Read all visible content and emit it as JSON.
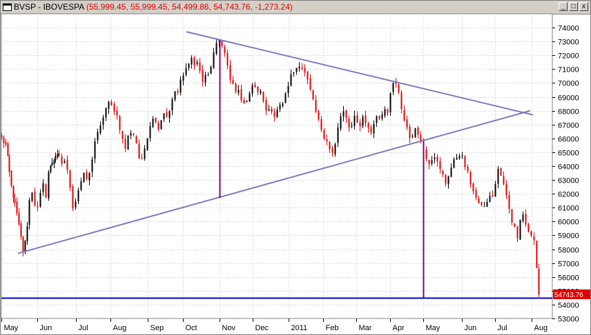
{
  "window": {
    "title_symbol": "BVSP - IBOVESPA",
    "title_values": "(55,999.45, 55,999.45, 54,499.86, 54,743.76, -1,273.24)",
    "minimize_glyph": "_",
    "maximize_glyph": "□",
    "close_glyph": "x"
  },
  "chart_data": {
    "type": "candlestick",
    "title": "",
    "ylim": [
      53000,
      75000
    ],
    "y_ticks": [
      53000,
      54000,
      55000,
      56000,
      57000,
      58000,
      59000,
      60000,
      61000,
      62000,
      63000,
      64000,
      65000,
      66000,
      67000,
      68000,
      69000,
      70000,
      71000,
      72000,
      73000,
      74000
    ],
    "x_labels": [
      "May",
      "Jun",
      "Jul",
      "Aug",
      "Sep",
      "Oct",
      "Nov",
      "Dec",
      "2011",
      "Feb",
      "Mar",
      "Apr",
      "May",
      "Jun",
      "Jul",
      "Aug"
    ],
    "last_price_label": "54743.76",
    "grid": true,
    "colors": {
      "up": "#000000",
      "down": "#e00000",
      "trendline": "#7b7bc0",
      "vline": "#800080",
      "hline": "#0000d0",
      "grid": "#c8c8c8"
    },
    "waypoints": [
      [
        0,
        66000
      ],
      [
        6,
        65500
      ],
      [
        14,
        62500
      ],
      [
        22,
        60500
      ],
      [
        28,
        58800
      ],
      [
        31,
        57900
      ],
      [
        34,
        58500
      ],
      [
        37,
        59800
      ],
      [
        40,
        61500
      ],
      [
        44,
        62200
      ],
      [
        48,
        61300
      ],
      [
        52,
        60900
      ],
      [
        56,
        61900
      ],
      [
        60,
        62600
      ],
      [
        64,
        61900
      ],
      [
        68,
        63600
      ],
      [
        73,
        64300
      ],
      [
        78,
        64800
      ],
      [
        83,
        64600
      ],
      [
        87,
        64200
      ],
      [
        91,
        64400
      ],
      [
        95,
        63600
      ],
      [
        99,
        62600
      ],
      [
        103,
        61100
      ],
      [
        107,
        61500
      ],
      [
        111,
        62300
      ],
      [
        115,
        62900
      ],
      [
        119,
        63300
      ],
      [
        123,
        63100
      ],
      [
        127,
        63400
      ],
      [
        131,
        64600
      ],
      [
        135,
        65800
      ],
      [
        139,
        66300
      ],
      [
        143,
        66800
      ],
      [
        147,
        67600
      ],
      [
        151,
        68200
      ],
      [
        155,
        68500
      ],
      [
        159,
        68300
      ],
      [
        163,
        68100
      ],
      [
        167,
        67600
      ],
      [
        171,
        66800
      ],
      [
        175,
        65900
      ],
      [
        179,
        65300
      ],
      [
        183,
        66100
      ],
      [
        187,
        66500
      ],
      [
        191,
        66300
      ],
      [
        195,
        65700
      ],
      [
        199,
        64600
      ],
      [
        203,
        64300
      ],
      [
        207,
        65300
      ],
      [
        211,
        66200
      ],
      [
        215,
        67000
      ],
      [
        219,
        67600
      ],
      [
        223,
        67100
      ],
      [
        227,
        66900
      ],
      [
        231,
        67400
      ],
      [
        235,
        67900
      ],
      [
        239,
        67600
      ],
      [
        243,
        68100
      ],
      [
        247,
        68700
      ],
      [
        251,
        69400
      ],
      [
        255,
        69300
      ],
      [
        259,
        70100
      ],
      [
        263,
        70500
      ],
      [
        267,
        71000
      ],
      [
        271,
        71600
      ],
      [
        275,
        71800
      ],
      [
        279,
        71300
      ],
      [
        283,
        71500
      ],
      [
        287,
        70800
      ],
      [
        291,
        70200
      ],
      [
        295,
        70600
      ],
      [
        299,
        70400
      ],
      [
        303,
        71300
      ],
      [
        307,
        72200
      ],
      [
        311,
        72700
      ],
      [
        315,
        73000
      ],
      [
        319,
        72900
      ],
      [
        323,
        72100
      ],
      [
        327,
        71200
      ],
      [
        331,
        70300
      ],
      [
        335,
        69800
      ],
      [
        339,
        69300
      ],
      [
        343,
        69600
      ],
      [
        347,
        68600
      ],
      [
        351,
        68300
      ],
      [
        355,
        68700
      ],
      [
        359,
        69400
      ],
      [
        363,
        69800
      ],
      [
        367,
        69600
      ],
      [
        371,
        69200
      ],
      [
        375,
        69400
      ],
      [
        379,
        68600
      ],
      [
        383,
        68200
      ],
      [
        387,
        67900
      ],
      [
        391,
        68100
      ],
      [
        395,
        67700
      ],
      [
        399,
        68100
      ],
      [
        403,
        68300
      ],
      [
        407,
        68600
      ],
      [
        411,
        69100
      ],
      [
        415,
        69900
      ],
      [
        419,
        70500
      ],
      [
        423,
        70800
      ],
      [
        427,
        71100
      ],
      [
        431,
        71400
      ],
      [
        435,
        71100
      ],
      [
        439,
        70700
      ],
      [
        443,
        70100
      ],
      [
        447,
        69400
      ],
      [
        451,
        68600
      ],
      [
        455,
        67900
      ],
      [
        459,
        67200
      ],
      [
        463,
        66700
      ],
      [
        467,
        66200
      ],
      [
        471,
        65900
      ],
      [
        475,
        65200
      ],
      [
        479,
        64900
      ],
      [
        483,
        65500
      ],
      [
        487,
        66700
      ],
      [
        491,
        67600
      ],
      [
        495,
        67900
      ],
      [
        499,
        67300
      ],
      [
        503,
        66700
      ],
      [
        507,
        67100
      ],
      [
        511,
        67600
      ],
      [
        515,
        67300
      ],
      [
        519,
        66800
      ],
      [
        523,
        67600
      ],
      [
        527,
        67200
      ],
      [
        531,
        66700
      ],
      [
        535,
        66500
      ],
      [
        539,
        67100
      ],
      [
        543,
        67700
      ],
      [
        547,
        67500
      ],
      [
        551,
        67900
      ],
      [
        555,
        68100
      ],
      [
        559,
        67600
      ],
      [
        563,
        69200
      ],
      [
        567,
        70000
      ],
      [
        571,
        69800
      ],
      [
        575,
        69200
      ],
      [
        579,
        68200
      ],
      [
        583,
        67300
      ],
      [
        587,
        66800
      ],
      [
        591,
        66200
      ],
      [
        595,
        66000
      ],
      [
        599,
        66800
      ],
      [
        603,
        66500
      ],
      [
        607,
        65700
      ],
      [
        611,
        65300
      ],
      [
        615,
        64700
      ],
      [
        619,
        64300
      ],
      [
        623,
        64600
      ],
      [
        627,
        64800
      ],
      [
        631,
        64200
      ],
      [
        635,
        63700
      ],
      [
        639,
        63300
      ],
      [
        643,
        62800
      ],
      [
        647,
        63400
      ],
      [
        651,
        63900
      ],
      [
        655,
        64300
      ],
      [
        659,
        64700
      ],
      [
        663,
        64900
      ],
      [
        667,
        64600
      ],
      [
        671,
        64000
      ],
      [
        675,
        63400
      ],
      [
        679,
        62800
      ],
      [
        683,
        62300
      ],
      [
        687,
        61700
      ],
      [
        691,
        61100
      ],
      [
        695,
        61300
      ],
      [
        699,
        61000
      ],
      [
        703,
        61500
      ],
      [
        707,
        61700
      ],
      [
        711,
        61900
      ],
      [
        715,
        62700
      ],
      [
        719,
        63700
      ],
      [
        723,
        63300
      ],
      [
        727,
        62600
      ],
      [
        731,
        61800
      ],
      [
        735,
        61000
      ],
      [
        739,
        60100
      ],
      [
        743,
        59500
      ],
      [
        747,
        59000
      ],
      [
        751,
        60300
      ],
      [
        755,
        60500
      ],
      [
        759,
        59800
      ],
      [
        763,
        59300
      ],
      [
        767,
        58900
      ],
      [
        771,
        58600
      ],
      [
        775,
        56600
      ],
      [
        778,
        54743
      ]
    ],
    "trendlines": [
      {
        "t1": 268,
        "v1": 73700,
        "t2": 770,
        "v2": 67700
      },
      {
        "t1": 24,
        "v1": 57700,
        "t2": 766,
        "v2": 68000
      }
    ],
    "vertical_lines": [
      {
        "t": 316,
        "v_from": 73100,
        "v_to": 61700
      },
      {
        "t": 611,
        "v_from": 65800,
        "v_to": 54493
      }
    ],
    "horizontal_line": 54493
  }
}
